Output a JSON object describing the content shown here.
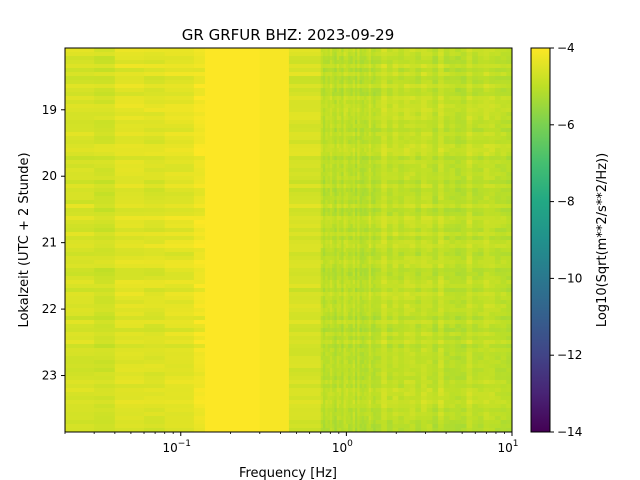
{
  "chart_data": {
    "type": "heatmap",
    "title": "GR GRFUR  BHZ: 2023-09-29",
    "xlabel": "Frequency [Hz]",
    "ylabel": "Lokalzeit (UTC + 2 Stunde)",
    "x_scale": "log",
    "xlim": [
      0.02,
      10
    ],
    "x_ticks": [
      {
        "value": 0.1,
        "base": "10",
        "exp": "−1"
      },
      {
        "value": 1,
        "base": "10",
        "exp": "0"
      },
      {
        "value": 10,
        "base": "10",
        "exp": "1"
      }
    ],
    "ylim": [
      18.07,
      23.85
    ],
    "y_ticks": [
      "19",
      "20",
      "21",
      "22",
      "23"
    ],
    "y_tick_values": [
      19,
      20,
      21,
      22,
      23
    ],
    "colorbar": {
      "label": "Log10(Sqrt(m**2/s**2/Hz))",
      "range": [
        -14,
        -4
      ],
      "ticks": [
        "−4",
        "−6",
        "−8",
        "−10",
        "−12",
        "−14"
      ],
      "tick_values": [
        -4,
        -6,
        -8,
        -10,
        -12,
        -14
      ],
      "colormap": "viridis"
    },
    "frequency_bands": [
      {
        "f_min": 0.02,
        "f_max": 0.03,
        "level": -4.6
      },
      {
        "f_min": 0.03,
        "f_max": 0.04,
        "level": -4.7
      },
      {
        "f_min": 0.04,
        "f_max": 0.06,
        "level": -4.45
      },
      {
        "f_min": 0.06,
        "f_max": 0.08,
        "level": -4.5
      },
      {
        "f_min": 0.08,
        "f_max": 0.12,
        "level": -4.4
      },
      {
        "f_min": 0.12,
        "f_max": 0.14,
        "level": -4.2
      },
      {
        "f_min": 0.14,
        "f_max": 0.3,
        "level": -4.02
      },
      {
        "f_min": 0.3,
        "f_max": 0.45,
        "level": -4.1
      },
      {
        "f_min": 0.45,
        "f_max": 0.7,
        "level": -4.6
      },
      {
        "f_min": 0.7,
        "f_max": 1.5,
        "level": -5.0
      },
      {
        "f_min": 1.5,
        "f_max": 10,
        "level": -4.95
      }
    ]
  }
}
